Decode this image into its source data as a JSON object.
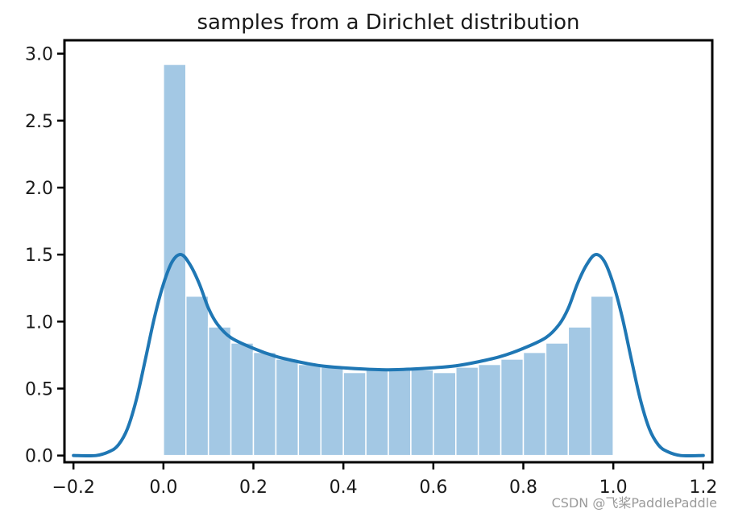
{
  "chart_data": {
    "type": "bar",
    "title": "samples from a Dirichlet distribution",
    "xlabel": "",
    "ylabel": "",
    "xlim": [
      -0.22,
      1.22
    ],
    "ylim": [
      -0.05,
      3.1
    ],
    "xticks": [
      -0.2,
      0.0,
      0.2,
      0.4,
      0.6,
      0.8,
      1.0,
      1.2
    ],
    "xtick_labels": [
      "−0.2",
      "0.0",
      "0.2",
      "0.4",
      "0.6",
      "0.8",
      "1.0",
      "1.2"
    ],
    "yticks": [
      0.0,
      0.5,
      1.0,
      1.5,
      2.0,
      2.5,
      3.0
    ],
    "ytick_labels": [
      "0.0",
      "0.5",
      "1.0",
      "1.5",
      "2.0",
      "2.5",
      "3.0"
    ],
    "grid": false,
    "series": [
      {
        "type": "histogram",
        "color": "#a3c8e4",
        "bin_edges": [
          0.0,
          0.05,
          0.1,
          0.15,
          0.2,
          0.25,
          0.3,
          0.35,
          0.4,
          0.45,
          0.5,
          0.55,
          0.6,
          0.65,
          0.7,
          0.75,
          0.8,
          0.85,
          0.9,
          0.95,
          1.0
        ],
        "values": [
          2.92,
          1.19,
          0.96,
          0.84,
          0.77,
          0.72,
          0.68,
          0.66,
          0.62,
          0.64,
          0.64,
          0.64,
          0.62,
          0.66,
          0.68,
          0.72,
          0.77,
          0.84,
          0.96,
          1.19
        ]
      },
      {
        "type": "line",
        "color": "#1f77b4",
        "x": [
          -0.2,
          -0.15,
          -0.12,
          -0.1,
          -0.08,
          -0.06,
          -0.04,
          -0.02,
          0.0,
          0.02,
          0.04,
          0.06,
          0.08,
          0.1,
          0.12,
          0.15,
          0.2,
          0.25,
          0.3,
          0.35,
          0.4,
          0.45,
          0.5,
          0.55,
          0.6,
          0.65,
          0.7,
          0.75,
          0.8,
          0.85,
          0.88,
          0.9,
          0.92,
          0.94,
          0.96,
          0.98,
          1.0,
          1.02,
          1.04,
          1.06,
          1.08,
          1.1,
          1.12,
          1.15,
          1.2
        ],
        "y": [
          0.0,
          0.0,
          0.03,
          0.08,
          0.2,
          0.42,
          0.72,
          1.03,
          1.28,
          1.45,
          1.5,
          1.42,
          1.28,
          1.1,
          0.98,
          0.88,
          0.8,
          0.74,
          0.7,
          0.67,
          0.655,
          0.645,
          0.64,
          0.645,
          0.655,
          0.67,
          0.7,
          0.74,
          0.8,
          0.88,
          0.98,
          1.1,
          1.28,
          1.42,
          1.5,
          1.45,
          1.28,
          1.03,
          0.72,
          0.42,
          0.2,
          0.08,
          0.03,
          0.0,
          0.0
        ]
      }
    ],
    "frame_color": "#000000"
  },
  "watermark": "CSDN @飞桨PaddlePaddle"
}
